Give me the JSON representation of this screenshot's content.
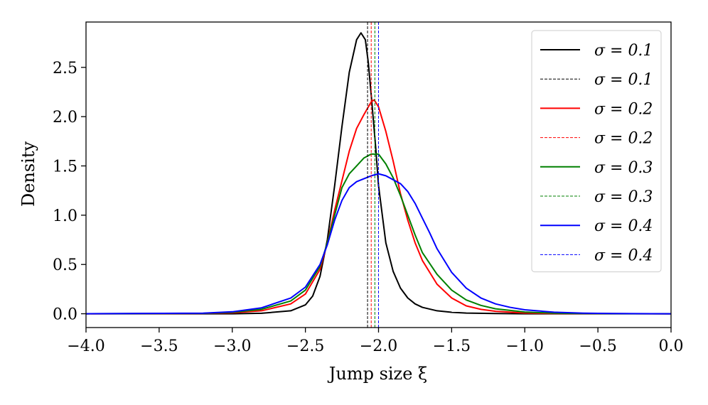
{
  "chart_data": {
    "type": "line",
    "title": "",
    "xlabel": "Jump size ξ",
    "ylabel": "Density",
    "xlim": [
      -4.0,
      0.0
    ],
    "ylim": [
      -0.14,
      2.96
    ],
    "grid": false,
    "legend_position": "top-right",
    "x_ticks": [
      -4.0,
      -3.5,
      -3.0,
      -2.5,
      -2.0,
      -1.5,
      -1.0,
      -0.5,
      0.0
    ],
    "x_tick_labels": [
      "−4.0",
      "−3.5",
      "−3.0",
      "−2.5",
      "−2.0",
      "−1.5",
      "−1.0",
      "−0.5",
      "0.0"
    ],
    "y_ticks": [
      0.0,
      0.5,
      1.0,
      1.5,
      2.0,
      2.5
    ],
    "y_tick_labels": [
      "0.0",
      "0.5",
      "1.0",
      "1.5",
      "2.0",
      "2.5"
    ],
    "series": [
      {
        "name": "σ = 0.1",
        "style": "solid",
        "color": "#000000",
        "x": [
          -4.0,
          -3.0,
          -2.8,
          -2.6,
          -2.5,
          -2.45,
          -2.4,
          -2.35,
          -2.3,
          -2.25,
          -2.2,
          -2.15,
          -2.12,
          -2.09,
          -2.07,
          -2.05,
          -2.02,
          -2.0,
          -1.95,
          -1.9,
          -1.85,
          -1.8,
          -1.75,
          -1.7,
          -1.6,
          -1.5,
          -1.4,
          -1.2,
          -1.0,
          0.0
        ],
        "y": [
          0.0,
          0.0,
          0.005,
          0.03,
          0.09,
          0.18,
          0.38,
          0.75,
          1.3,
          1.9,
          2.45,
          2.78,
          2.85,
          2.78,
          2.55,
          2.22,
          1.7,
          1.3,
          0.72,
          0.43,
          0.26,
          0.16,
          0.1,
          0.065,
          0.03,
          0.015,
          0.007,
          0.002,
          0.0,
          0.0
        ]
      },
      {
        "name": "σ = 0.1",
        "style": "dashed",
        "color": "#000000",
        "vline": -2.075
      },
      {
        "name": "σ = 0.2",
        "style": "solid",
        "color": "#ff0000",
        "x": [
          -4.0,
          -3.2,
          -3.0,
          -2.8,
          -2.6,
          -2.5,
          -2.4,
          -2.35,
          -2.3,
          -2.2,
          -2.15,
          -2.1,
          -2.05,
          -2.03,
          -2.0,
          -1.95,
          -1.9,
          -1.85,
          -1.8,
          -1.75,
          -1.7,
          -1.6,
          -1.5,
          -1.4,
          -1.3,
          -1.2,
          -1.0,
          -0.8,
          0.0
        ],
        "y": [
          0.0,
          0.003,
          0.01,
          0.03,
          0.1,
          0.2,
          0.45,
          0.72,
          1.05,
          1.65,
          1.88,
          2.02,
          2.15,
          2.17,
          2.1,
          1.85,
          1.55,
          1.22,
          0.95,
          0.72,
          0.54,
          0.3,
          0.16,
          0.08,
          0.045,
          0.025,
          0.008,
          0.002,
          0.0
        ]
      },
      {
        "name": "σ = 0.2",
        "style": "dashed",
        "color": "#ff0000",
        "vline": -2.05
      },
      {
        "name": "σ = 0.3",
        "style": "solid",
        "color": "#008000",
        "x": [
          -4.0,
          -3.2,
          -3.0,
          -2.8,
          -2.6,
          -2.5,
          -2.4,
          -2.35,
          -2.3,
          -2.25,
          -2.2,
          -2.15,
          -2.1,
          -2.05,
          -2.0,
          -1.95,
          -1.9,
          -1.85,
          -1.8,
          -1.75,
          -1.7,
          -1.6,
          -1.5,
          -1.4,
          -1.3,
          -1.2,
          -1.0,
          -0.8,
          -0.6,
          0.0
        ],
        "y": [
          0.0,
          0.004,
          0.015,
          0.045,
          0.13,
          0.24,
          0.48,
          0.72,
          1.0,
          1.28,
          1.42,
          1.5,
          1.58,
          1.62,
          1.62,
          1.52,
          1.38,
          1.2,
          1.0,
          0.8,
          0.62,
          0.4,
          0.24,
          0.14,
          0.085,
          0.05,
          0.018,
          0.006,
          0.002,
          0.0
        ]
      },
      {
        "name": "σ = 0.3",
        "style": "dashed",
        "color": "#008000",
        "vline": -2.025
      },
      {
        "name": "σ = 0.4",
        "style": "solid",
        "color": "#0000ff",
        "x": [
          -4.0,
          -3.2,
          -3.0,
          -2.8,
          -2.6,
          -2.5,
          -2.4,
          -2.35,
          -2.3,
          -2.25,
          -2.2,
          -2.15,
          -2.1,
          -2.05,
          -2.0,
          -1.95,
          -1.9,
          -1.85,
          -1.8,
          -1.75,
          -1.7,
          -1.65,
          -1.6,
          -1.5,
          -1.4,
          -1.3,
          -1.2,
          -1.1,
          -1.0,
          -0.8,
          -0.6,
          -0.4,
          0.0
        ],
        "y": [
          0.0,
          0.006,
          0.02,
          0.06,
          0.16,
          0.27,
          0.5,
          0.7,
          0.95,
          1.15,
          1.28,
          1.34,
          1.37,
          1.4,
          1.42,
          1.4,
          1.36,
          1.32,
          1.24,
          1.12,
          0.97,
          0.82,
          0.66,
          0.42,
          0.26,
          0.16,
          0.1,
          0.065,
          0.04,
          0.016,
          0.006,
          0.002,
          0.0
        ]
      },
      {
        "name": "σ = 0.4",
        "style": "dashed",
        "color": "#0000ff",
        "vline": -2.0
      }
    ]
  }
}
